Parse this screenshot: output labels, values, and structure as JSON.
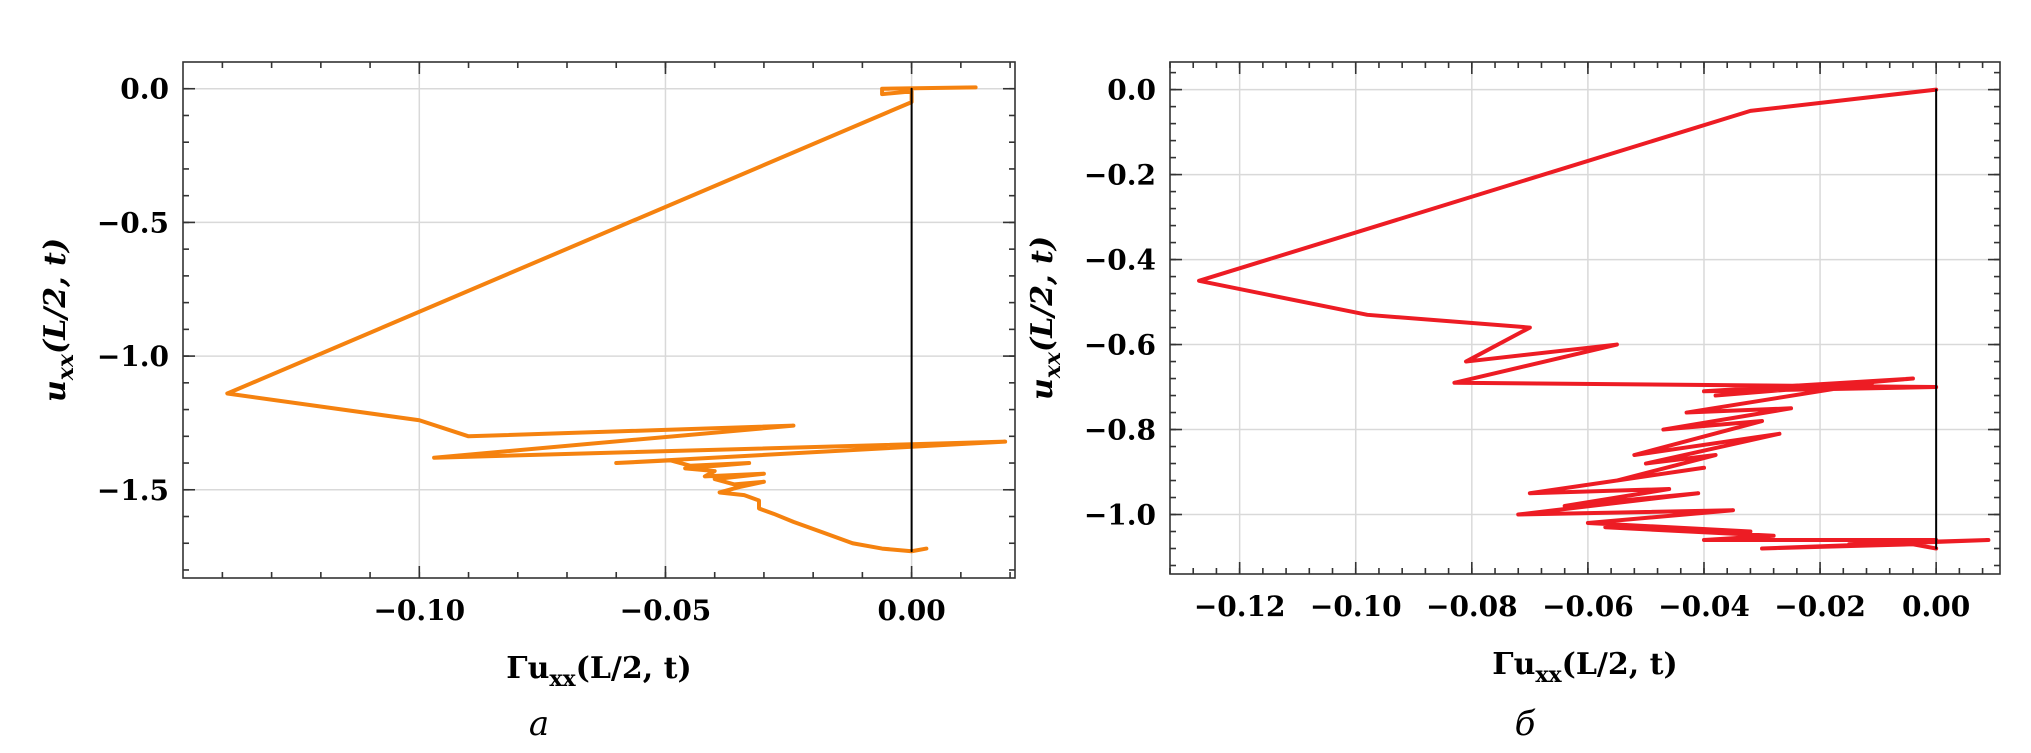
{
  "chart_data": [
    {
      "type": "line",
      "panel_label": "a",
      "xlabel": "Γu_xx(L/2, t)",
      "ylabel": "u_xx(L/2, t)",
      "xlim": [
        -0.148,
        0.021
      ],
      "ylim": [
        -1.83,
        0.1
      ],
      "x_ticks": [
        -0.1,
        -0.05,
        0.0
      ],
      "x_tick_labels": [
        "−0.10",
        "−0.05",
        "0.00"
      ],
      "y_ticks": [
        0.0,
        -0.5,
        -1.0,
        -1.5
      ],
      "y_tick_labels": [
        "0.0",
        "−0.5",
        "−1.0",
        "−1.5"
      ],
      "grid": true,
      "series": [
        {
          "color": "#f5820f",
          "points": [
            [
              0.013,
              0.005
            ],
            [
              -0.006,
              0.0
            ],
            [
              -0.006,
              -0.02
            ],
            [
              0.0,
              -0.01
            ],
            [
              0.0,
              -0.05
            ],
            [
              -0.139,
              -1.14
            ],
            [
              -0.1,
              -1.24
            ],
            [
              -0.09,
              -1.3
            ],
            [
              -0.024,
              -1.26
            ],
            [
              -0.097,
              -1.38
            ],
            [
              0.019,
              -1.32
            ],
            [
              -0.06,
              -1.4
            ],
            [
              -0.049,
              -1.39
            ],
            [
              -0.045,
              -1.41
            ],
            [
              -0.033,
              -1.4
            ],
            [
              -0.046,
              -1.42
            ],
            [
              -0.04,
              -1.43
            ],
            [
              -0.042,
              -1.45
            ],
            [
              -0.03,
              -1.44
            ],
            [
              -0.04,
              -1.46
            ],
            [
              -0.036,
              -1.48
            ],
            [
              -0.03,
              -1.47
            ],
            [
              -0.035,
              -1.49
            ],
            [
              -0.039,
              -1.51
            ],
            [
              -0.034,
              -1.52
            ],
            [
              -0.031,
              -1.54
            ],
            [
              -0.031,
              -1.57
            ],
            [
              -0.028,
              -1.59
            ],
            [
              -0.024,
              -1.62
            ],
            [
              -0.018,
              -1.66
            ],
            [
              -0.012,
              -1.7
            ],
            [
              -0.006,
              -1.72
            ],
            [
              0.0,
              -1.73
            ],
            [
              0.003,
              -1.72
            ]
          ]
        },
        {
          "color": "#000000",
          "points": [
            [
              0.0,
              0.0
            ],
            [
              0.0,
              -1.73
            ]
          ]
        }
      ]
    },
    {
      "type": "line",
      "panel_label": "б",
      "xlabel": "Γu_xx(L/2, t)",
      "ylabel": "u_xx(L/2, t)",
      "xlim": [
        -0.132,
        0.011
      ],
      "ylim": [
        -1.14,
        0.065
      ],
      "x_ticks": [
        -0.12,
        -0.1,
        -0.08,
        -0.06,
        -0.04,
        -0.02,
        0.0
      ],
      "x_tick_labels": [
        "−0.12",
        "−0.10",
        "−0.08",
        "−0.06",
        "−0.04",
        "−0.02",
        "0.00"
      ],
      "y_ticks": [
        0.0,
        -0.2,
        -0.4,
        -0.6,
        -0.8,
        -1.0
      ],
      "y_tick_labels": [
        "0.0",
        "−0.2",
        "−0.4",
        "−0.6",
        "−0.8",
        "−1.0"
      ],
      "grid": true,
      "series": [
        {
          "color": "#ed1c24",
          "points": [
            [
              0.0,
              0.0
            ],
            [
              -0.032,
              -0.05
            ],
            [
              -0.127,
              -0.45
            ],
            [
              -0.098,
              -0.53
            ],
            [
              -0.07,
              -0.56
            ],
            [
              -0.081,
              -0.64
            ],
            [
              -0.055,
              -0.6
            ],
            [
              -0.083,
              -0.69
            ],
            [
              0.0,
              -0.7
            ],
            [
              -0.04,
              -0.71
            ],
            [
              -0.004,
              -0.68
            ],
            [
              -0.038,
              -0.72
            ],
            [
              -0.011,
              -0.69
            ],
            [
              -0.043,
              -0.76
            ],
            [
              -0.025,
              -0.75
            ],
            [
              -0.047,
              -0.8
            ],
            [
              -0.03,
              -0.78
            ],
            [
              -0.052,
              -0.86
            ],
            [
              -0.027,
              -0.81
            ],
            [
              -0.05,
              -0.88
            ],
            [
              -0.038,
              -0.86
            ],
            [
              -0.055,
              -0.92
            ],
            [
              -0.04,
              -0.89
            ],
            [
              -0.07,
              -0.95
            ],
            [
              -0.046,
              -0.94
            ],
            [
              -0.064,
              -0.98
            ],
            [
              -0.041,
              -0.95
            ],
            [
              -0.072,
              -1.0
            ],
            [
              -0.035,
              -0.99
            ],
            [
              -0.06,
              -1.02
            ],
            [
              -0.032,
              -1.04
            ],
            [
              -0.057,
              -1.03
            ],
            [
              -0.028,
              -1.05
            ],
            [
              -0.04,
              -1.06
            ],
            [
              0.0,
              -1.06
            ],
            [
              -0.015,
              -1.07
            ],
            [
              0.009,
              -1.06
            ],
            [
              -0.03,
              -1.08
            ],
            [
              -0.004,
              -1.07
            ],
            [
              0.0,
              -1.08
            ]
          ]
        },
        {
          "color": "#000000",
          "points": [
            [
              0.0,
              0.0
            ],
            [
              0.0,
              -1.08
            ]
          ]
        }
      ]
    }
  ]
}
